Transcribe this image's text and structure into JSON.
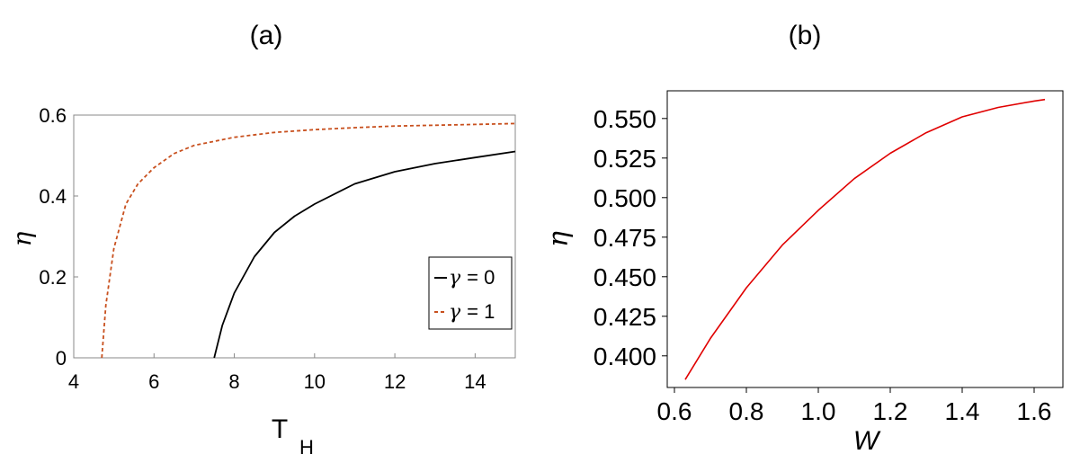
{
  "chart_data": [
    {
      "panel_label": "(a)",
      "type": "line",
      "xlabel": "T",
      "xlabel_sub": "H",
      "ylabel": "η",
      "xlim": [
        4,
        15
      ],
      "ylim": [
        0,
        0.6
      ],
      "xticks": [
        4,
        6,
        8,
        10,
        12,
        14
      ],
      "yticks": [
        0,
        0.2,
        0.4,
        0.6
      ],
      "xtick_labels": [
        "4",
        "6",
        "8",
        "10",
        "12",
        "14"
      ],
      "ytick_labels": [
        "0",
        "0.2",
        "0.4",
        "0.6"
      ],
      "legend": {
        "position": "lower-right",
        "entries": [
          {
            "symbol": "γ",
            "text": " = 0"
          },
          {
            "symbol": "γ",
            "text": " = 1"
          }
        ]
      },
      "series": [
        {
          "name": "γ = 0",
          "color": "#000000",
          "style": "solid",
          "x": [
            7.5,
            7.7,
            8.0,
            8.5,
            9.0,
            9.5,
            10.0,
            11.0,
            12.0,
            13.0,
            14.0,
            15.0
          ],
          "y": [
            0.0,
            0.08,
            0.16,
            0.25,
            0.31,
            0.35,
            0.38,
            0.43,
            0.46,
            0.48,
            0.495,
            0.51
          ]
        },
        {
          "name": "γ = 1",
          "color": "#c8501e",
          "style": "dashed",
          "x": [
            4.7,
            4.8,
            5.0,
            5.3,
            5.6,
            6.0,
            6.5,
            7.0,
            8.0,
            9.0,
            10.0,
            11.0,
            12.0,
            13.0,
            14.0,
            15.0
          ],
          "y": [
            0.0,
            0.13,
            0.27,
            0.38,
            0.43,
            0.47,
            0.505,
            0.525,
            0.545,
            0.557,
            0.564,
            0.569,
            0.573,
            0.575,
            0.577,
            0.579
          ]
        }
      ]
    },
    {
      "panel_label": "(b)",
      "type": "line",
      "xlabel": "W",
      "ylabel": "η",
      "xlim": [
        0.58,
        1.68
      ],
      "ylim": [
        0.38,
        0.5675
      ],
      "xticks": [
        0.6,
        0.8,
        1.0,
        1.2,
        1.4,
        1.6
      ],
      "yticks": [
        0.4,
        0.425,
        0.45,
        0.475,
        0.5,
        0.525,
        0.55
      ],
      "xtick_labels": [
        "0.6",
        "0.8",
        "1.0",
        "1.2",
        "1.4",
        "1.6"
      ],
      "ytick_labels": [
        "0.400",
        "0.425",
        "0.450",
        "0.475",
        "0.500",
        "0.525",
        "0.550"
      ],
      "series": [
        {
          "color": "#e00000",
          "style": "solid",
          "x": [
            0.63,
            0.7,
            0.8,
            0.9,
            1.0,
            1.1,
            1.2,
            1.3,
            1.4,
            1.5,
            1.6,
            1.63
          ],
          "y": [
            0.385,
            0.411,
            0.443,
            0.47,
            0.492,
            0.512,
            0.528,
            0.541,
            0.551,
            0.557,
            0.561,
            0.562
          ]
        }
      ]
    }
  ]
}
